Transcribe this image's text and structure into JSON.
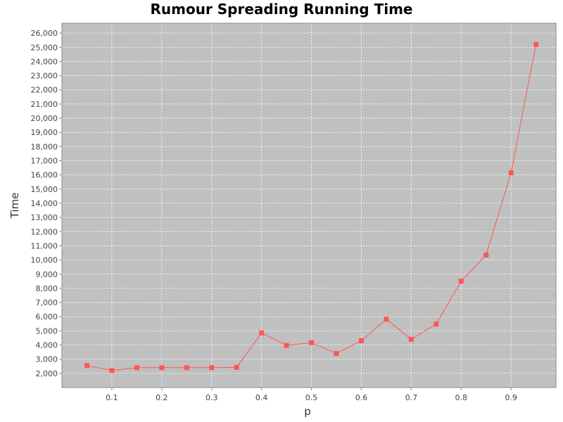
{
  "colors": {
    "page_background": "#ffffff",
    "plot_background": "#c0c0c0",
    "gridline": "#ffffff",
    "series": "#ff5555",
    "axis": "#888888"
  },
  "chart_data": {
    "type": "line",
    "title": "Rumour Spreading Running Time",
    "xlabel": "p",
    "ylabel": "Time",
    "xlim": [
      0.0,
      0.99
    ],
    "ylim": [
      1000,
      26700
    ],
    "grid": true,
    "legend": "none",
    "marker": "square",
    "x_ticks": [
      {
        "value": 0.1,
        "label": "0.1"
      },
      {
        "value": 0.2,
        "label": "0.2"
      },
      {
        "value": 0.3,
        "label": "0.3"
      },
      {
        "value": 0.4,
        "label": "0.4"
      },
      {
        "value": 0.5,
        "label": "0.5"
      },
      {
        "value": 0.6,
        "label": "0.6"
      },
      {
        "value": 0.7,
        "label": "0.7"
      },
      {
        "value": 0.8,
        "label": "0.8"
      },
      {
        "value": 0.9,
        "label": "0.9"
      }
    ],
    "y_ticks": [
      {
        "value": 2000,
        "label": "2,000"
      },
      {
        "value": 3000,
        "label": "3,000"
      },
      {
        "value": 4000,
        "label": "4,000"
      },
      {
        "value": 5000,
        "label": "5,000"
      },
      {
        "value": 6000,
        "label": "6,000"
      },
      {
        "value": 7000,
        "label": "7,000"
      },
      {
        "value": 8000,
        "label": "8,000"
      },
      {
        "value": 9000,
        "label": "9,000"
      },
      {
        "value": 10000,
        "label": "10,000"
      },
      {
        "value": 11000,
        "label": "11,000"
      },
      {
        "value": 12000,
        "label": "12,000"
      },
      {
        "value": 13000,
        "label": "13,000"
      },
      {
        "value": 14000,
        "label": "14,000"
      },
      {
        "value": 15000,
        "label": "15,000"
      },
      {
        "value": 16000,
        "label": "16,000"
      },
      {
        "value": 17000,
        "label": "17,000"
      },
      {
        "value": 18000,
        "label": "18,000"
      },
      {
        "value": 19000,
        "label": "19,000"
      },
      {
        "value": 20000,
        "label": "20,000"
      },
      {
        "value": 21000,
        "label": "21,000"
      },
      {
        "value": 22000,
        "label": "22,000"
      },
      {
        "value": 23000,
        "label": "23,000"
      },
      {
        "value": 24000,
        "label": "24,000"
      },
      {
        "value": 25000,
        "label": "25,000"
      },
      {
        "value": 26000,
        "label": "26,000"
      }
    ],
    "series": [
      {
        "x": [
          0.05,
          0.1,
          0.15,
          0.2,
          0.25,
          0.3,
          0.35,
          0.4,
          0.45,
          0.5,
          0.55,
          0.6,
          0.65,
          0.7,
          0.75,
          0.8,
          0.85,
          0.9,
          0.95
        ],
        "y": [
          2550,
          2200,
          2400,
          2400,
          2400,
          2400,
          2420,
          4850,
          3970,
          4170,
          3400,
          4300,
          5820,
          4400,
          5480,
          8500,
          10350,
          16150,
          25200
        ]
      }
    ]
  }
}
